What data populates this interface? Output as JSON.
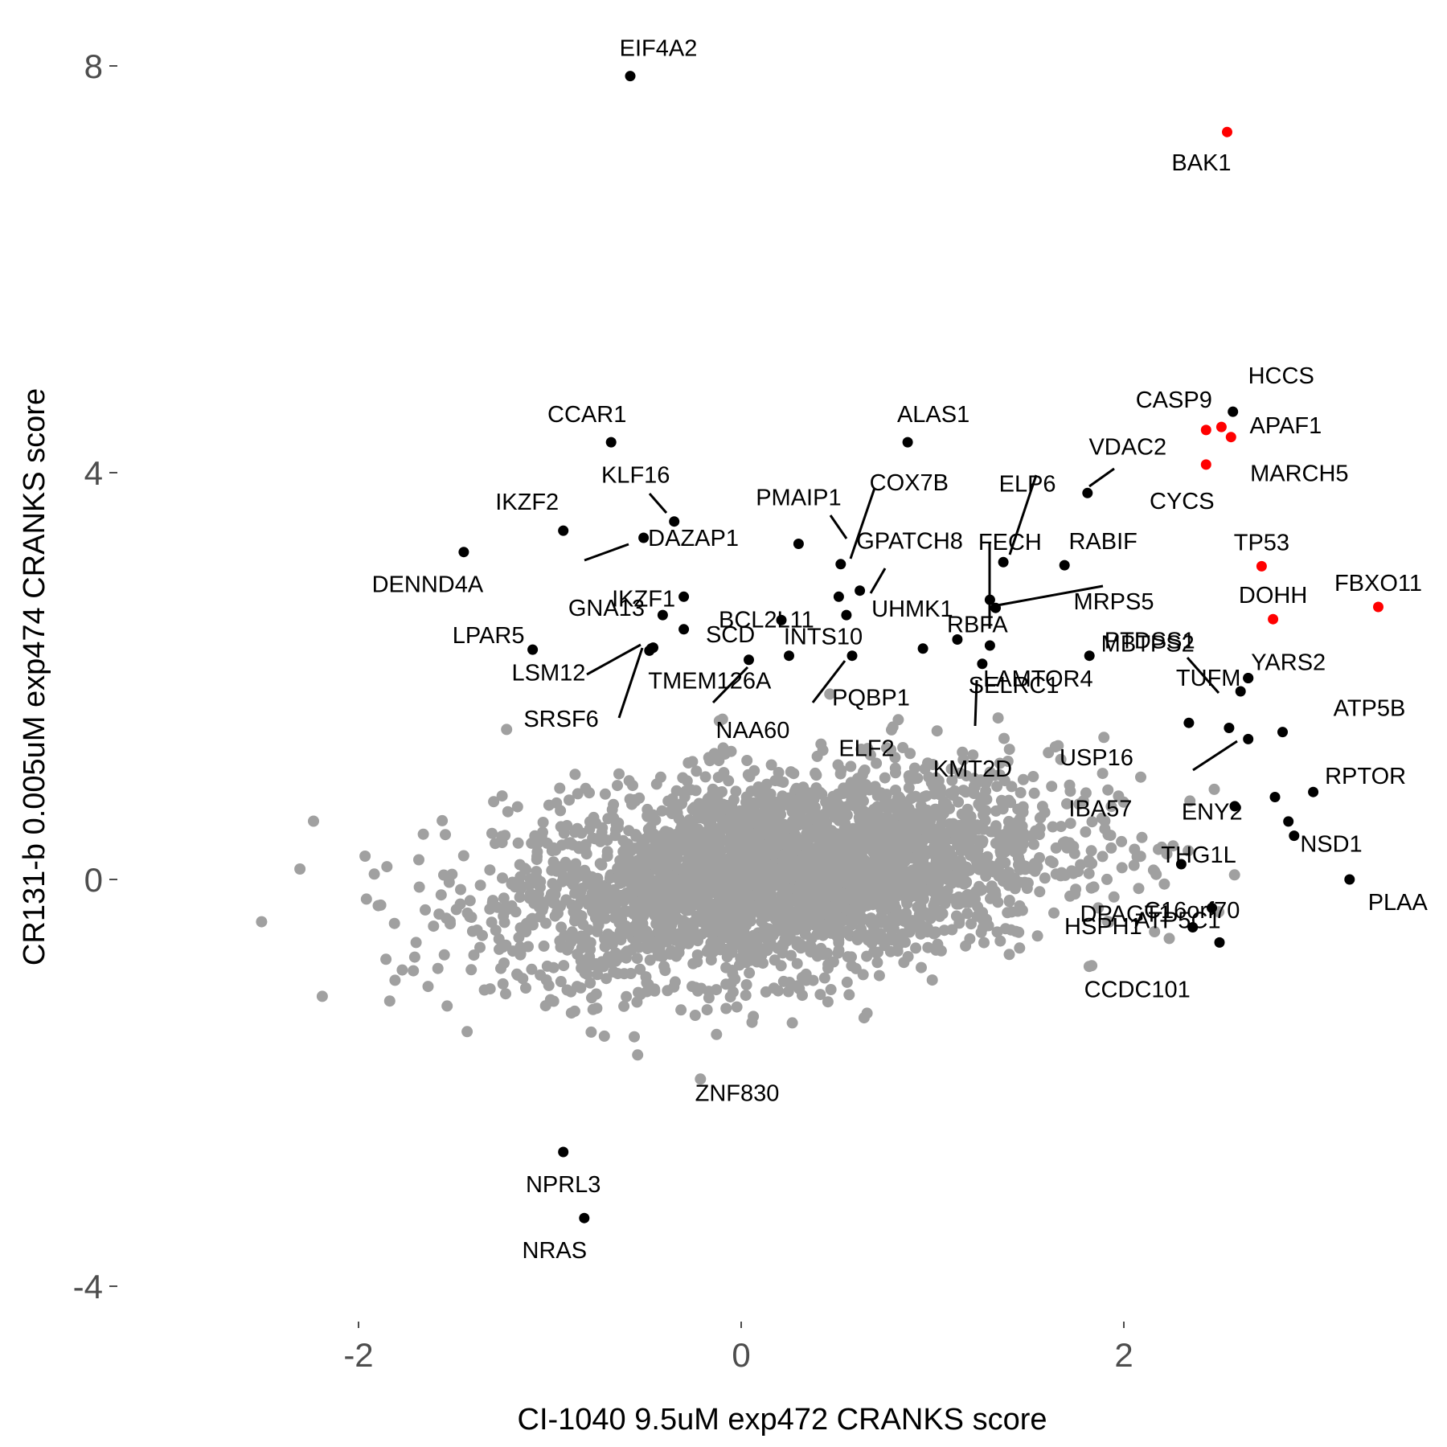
{
  "chart_data": {
    "type": "scatter",
    "xlabel": "CI-1040 9.5uM exp472 CRANKS score",
    "ylabel": "CR131-b 0.005uM exp474 CRANKS score",
    "xlim": [
      -3.1,
      3.6
    ],
    "ylim": [
      -4.4,
      8.2
    ],
    "x_ticks": [
      -2,
      0,
      2
    ],
    "x_tick_labels": [
      "-2",
      "0",
      "2"
    ],
    "y_ticks": [
      -4,
      0,
      4,
      8
    ],
    "y_tick_labels": [
      "-4",
      "0",
      "4",
      "8"
    ],
    "grid": false,
    "colors": {
      "background": "#ffffff",
      "cloud_points": "#a0a0a0",
      "highlight_red": "#ff0000",
      "labeled_black": "#000000",
      "tick_text": "#4d4d4d"
    },
    "background_cloud": {
      "count": 3200,
      "center": [
        0.2,
        0.05
      ],
      "sd": [
        0.72,
        0.48
      ],
      "color": "#a0a0a0"
    },
    "series": [
      {
        "color": "#ff0000",
        "points": [
          {
            "label": "BAK1",
            "x": 2.54,
            "y": 7.35
          },
          {
            "label": "CASP9",
            "x": 2.43,
            "y": 4.42
          },
          {
            "label": "APAF1",
            "x": 2.51,
            "y": 4.45
          },
          {
            "label": "MARCH5",
            "x": 2.56,
            "y": 4.35
          },
          {
            "label": "CYCS",
            "x": 2.43,
            "y": 4.08
          },
          {
            "label": "TP53",
            "x": 2.72,
            "y": 3.08
          },
          {
            "label": "FBXO11",
            "x": 3.33,
            "y": 2.68
          },
          {
            "label": "DOHH",
            "x": 2.78,
            "y": 2.56
          }
        ]
      },
      {
        "color": "#000000",
        "points": [
          {
            "label": "EIF4A2",
            "x": -0.58,
            "y": 7.9
          },
          {
            "label": "HCCS",
            "x": 2.57,
            "y": 4.6
          },
          {
            "label": "CCAR1",
            "x": -0.68,
            "y": 4.3
          },
          {
            "label": "ALAS1",
            "x": 0.87,
            "y": 4.3
          },
          {
            "label": "VDAC2",
            "x": 1.81,
            "y": 3.8
          },
          {
            "label": "KLF16",
            "x": -0.35,
            "y": 3.52
          },
          {
            "label": "DAZAP1",
            "x": -0.51,
            "y": 3.36
          },
          {
            "label": "IKZF2",
            "x": -0.93,
            "y": 3.43
          },
          {
            "label": "DENND4A",
            "x": -1.45,
            "y": 3.22
          },
          {
            "label": "PMAIP1",
            "x": 0.3,
            "y": 3.3
          },
          {
            "label": "COX7B",
            "x": 0.52,
            "y": 3.1
          },
          {
            "label": "GPATCH8",
            "x": 0.62,
            "y": 2.84
          },
          {
            "label": "ELP6",
            "x": 1.37,
            "y": 3.12
          },
          {
            "label": "FECH",
            "x": 1.3,
            "y": 2.75
          },
          {
            "label": "RABIF",
            "x": 1.69,
            "y": 3.09
          },
          {
            "label": "MRPS5",
            "x": 1.33,
            "y": 2.67
          },
          {
            "label": "IKZF1",
            "x": -0.3,
            "y": 2.78
          },
          {
            "label": "BCL2L11",
            "x": 0.51,
            "y": 2.78
          },
          {
            "label": "UHMK1",
            "x": 0.55,
            "y": 2.6
          },
          {
            "label": "GNA13",
            "x": -0.41,
            "y": 2.6
          },
          {
            "label": "SCD",
            "x": -0.3,
            "y": 2.46
          },
          {
            "label": "INTS10",
            "x": 0.21,
            "y": 2.55
          },
          {
            "label": "RBFA",
            "x": 1.13,
            "y": 2.36
          },
          {
            "label": "LPAR5",
            "x": -1.09,
            "y": 2.26
          },
          {
            "label": "PTDSS1",
            "x": 1.82,
            "y": 2.2
          },
          {
            "label": "LSM12",
            "x": -0.46,
            "y": 2.28
          },
          {
            "label": "TMEM126A",
            "x": -0.48,
            "y": 2.25
          },
          {
            "label": "SRSF6",
            "x": -0.47,
            "y": 2.27
          },
          {
            "label": "NAA60",
            "x": 0.04,
            "y": 2.16
          },
          {
            "label": "PQBP1",
            "x": 0.25,
            "y": 2.2
          },
          {
            "label": "ELF2",
            "x": 0.58,
            "y": 2.2
          },
          {
            "label": "SELRC1",
            "x": 0.95,
            "y": 2.27
          },
          {
            "label": "LAMTOR4",
            "x": 1.3,
            "y": 2.3
          },
          {
            "label": "KMT2D",
            "x": 1.26,
            "y": 2.12
          },
          {
            "label": "MBTPS2",
            "x": 2.65,
            "y": 1.98
          },
          {
            "label": "YARS2",
            "x": 2.65,
            "y": 1.98
          },
          {
            "label": "TUFM",
            "x": 2.61,
            "y": 1.85
          },
          {
            "label": "USP16",
            "x": 2.34,
            "y": 1.54
          },
          {
            "label": "ATP5B",
            "x": 2.83,
            "y": 1.45
          },
          {
            "label": "IBA57",
            "x": 2.55,
            "y": 1.49
          },
          {
            "label": "ENY2",
            "x": 2.65,
            "y": 1.38
          },
          {
            "label": "RPTOR",
            "x": 2.99,
            "y": 0.86
          },
          {
            "label": "THG1L",
            "x": 2.58,
            "y": 0.72
          },
          {
            "label": "NSD1",
            "x": 2.79,
            "y": 0.81
          },
          {
            "label": "C16orf70",
            "x": 2.86,
            "y": 0.57
          },
          {
            "label": "ATP5C1",
            "x": 2.89,
            "y": 0.43
          },
          {
            "label": "PLAA",
            "x": 3.18,
            "y": 0.0
          },
          {
            "label": "HSPH1",
            "x": 2.3,
            "y": 0.15
          },
          {
            "label": "DPAGT1",
            "x": 2.46,
            "y": -0.28
          },
          {
            "label": "CCDC101",
            "x": 2.36,
            "y": -0.47
          },
          {
            "label": "ZNF830",
            "x": 2.5,
            "y": -0.62
          },
          {
            "label": "NPRL3",
            "x": -0.93,
            "y": -2.68
          },
          {
            "label": "NRAS",
            "x": -0.82,
            "y": -3.33
          }
        ]
      }
    ]
  }
}
